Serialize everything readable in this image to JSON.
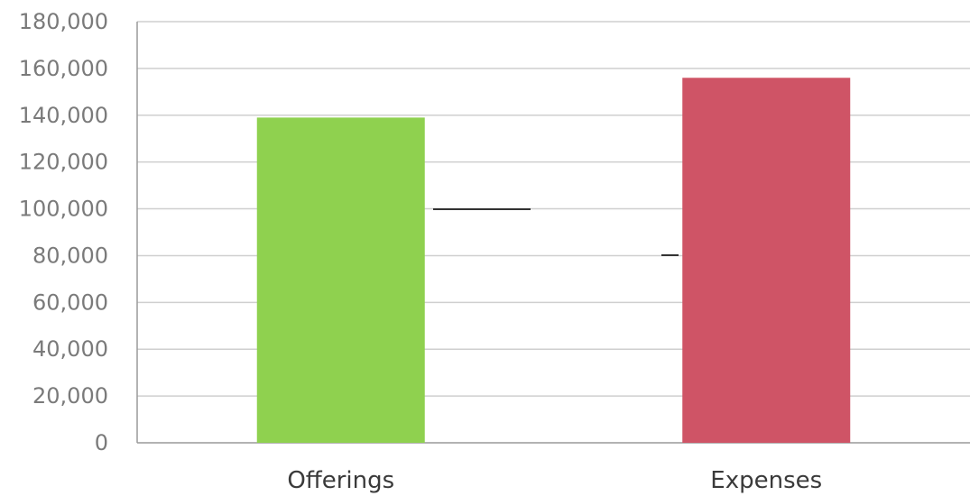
{
  "chart_data": {
    "type": "bar",
    "title": "",
    "xlabel": "",
    "ylabel": "",
    "categories": [
      "Offerings",
      "Expenses"
    ],
    "values": [
      139000,
      156000
    ],
    "ylim": [
      0,
      180000
    ],
    "yticks": [
      0,
      20000,
      40000,
      60000,
      80000,
      100000,
      120000,
      140000,
      160000,
      180000
    ],
    "ytick_labels": [
      "0",
      "20,000",
      "40,000",
      "60,000",
      "80,000",
      "100,000",
      "120,000",
      "140,000",
      "160,000",
      "180,000"
    ],
    "bar_colors": [
      "#8fd14f",
      "#cf5466"
    ],
    "grid": true,
    "legend": "none"
  }
}
